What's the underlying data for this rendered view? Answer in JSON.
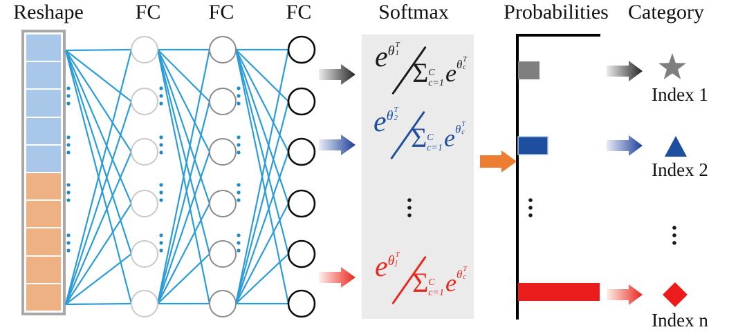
{
  "figure": {
    "headers": {
      "reshape": "Reshape",
      "fc1": "FC",
      "fc2": "FC",
      "fc3": "FC",
      "softmax": "Softmax",
      "probabilities": "Probabilities",
      "category": "Category"
    },
    "reshape": {
      "cell_colors": [
        "#a9c7e9",
        "#a9c7e9",
        "#a9c7e9",
        "#a9c7e9",
        "#a9c7e9",
        "#edb183",
        "#edb183",
        "#edb183",
        "#edb183",
        "#edb183"
      ]
    },
    "network": {
      "fc_layers_shown": 3,
      "neurons_shown_per_layer": 6,
      "ellipsis_glyph": "⋮"
    },
    "softmax_formulas": [
      {
        "color": "#1a1a1a",
        "e": "e",
        "theta": "θ",
        "sub": "1",
        "sup": "T",
        "sum": "Σ",
        "sum_upper": "C",
        "sum_lower": "c=1",
        "den_e": "e",
        "den_theta": "θ",
        "den_sub": "c",
        "den_sup": "T"
      },
      {
        "color": "#1d4f9e",
        "e": "e",
        "theta": "θ",
        "sub": "2",
        "sup": "T",
        "sum": "Σ",
        "sum_upper": "C",
        "sum_lower": "c=1",
        "den_e": "e",
        "den_theta": "θ",
        "den_sub": "c",
        "den_sup": "T"
      },
      {
        "color": "#e8271e",
        "e": "e",
        "theta": "θ",
        "sub": "j",
        "sup": "T",
        "sum": "Σ",
        "sum_upper": "C",
        "sum_lower": "c=1",
        "den_e": "e",
        "den_theta": "θ",
        "den_sub": "c",
        "den_sup": "T"
      }
    ],
    "probabilities_chart": {
      "type": "bar",
      "orientation": "horizontal",
      "axis_style": "L-shaped, no ticks or numeric labels",
      "has_ellipsis_between_rows": true,
      "bars": [
        {
          "category": "Index 1",
          "relative_width": 0.26,
          "color": "#7f7f7f"
        },
        {
          "category": "Index 2",
          "relative_width": 0.36,
          "color": "#1e4f9e"
        },
        {
          "category": "Index n",
          "relative_width": 0.99,
          "color": "#eb1c1c"
        }
      ]
    },
    "categories": [
      {
        "label": "Index 1",
        "shape": "star",
        "color": "#7f7f7f"
      },
      {
        "label": "Index 2",
        "shape": "triangle",
        "color": "#1e4f9e"
      },
      {
        "label": "Index n",
        "shape": "diamond",
        "color": "#eb1c1c"
      }
    ],
    "colors": {
      "connection": "#2b9cd8",
      "dot_blue": "#1f8ac6",
      "dot_black": "#1a1a1a",
      "layer1_stroke": "#c9c9c9",
      "layer2_stroke": "#8a8a8a",
      "layer3_stroke": "#0d0d0d",
      "softmax_bg": "#ebebeb",
      "reshape_border": "#a8a8a8",
      "orange_arrow": "#ed7d31",
      "bar_gray": "#7f7f7f",
      "bar_blue": "#1e4f9e",
      "bar_blue_border": "#a9c7e9",
      "bar_red": "#eb1c1c",
      "axis_black": "#000000",
      "arrow_gradient_gray": [
        "#ececec",
        "#262626"
      ],
      "arrow_gradient_blue": [
        "#e8ecf6",
        "#1c3f99"
      ],
      "arrow_gradient_red": [
        "#fdf0ea",
        "#e8261d"
      ]
    }
  }
}
